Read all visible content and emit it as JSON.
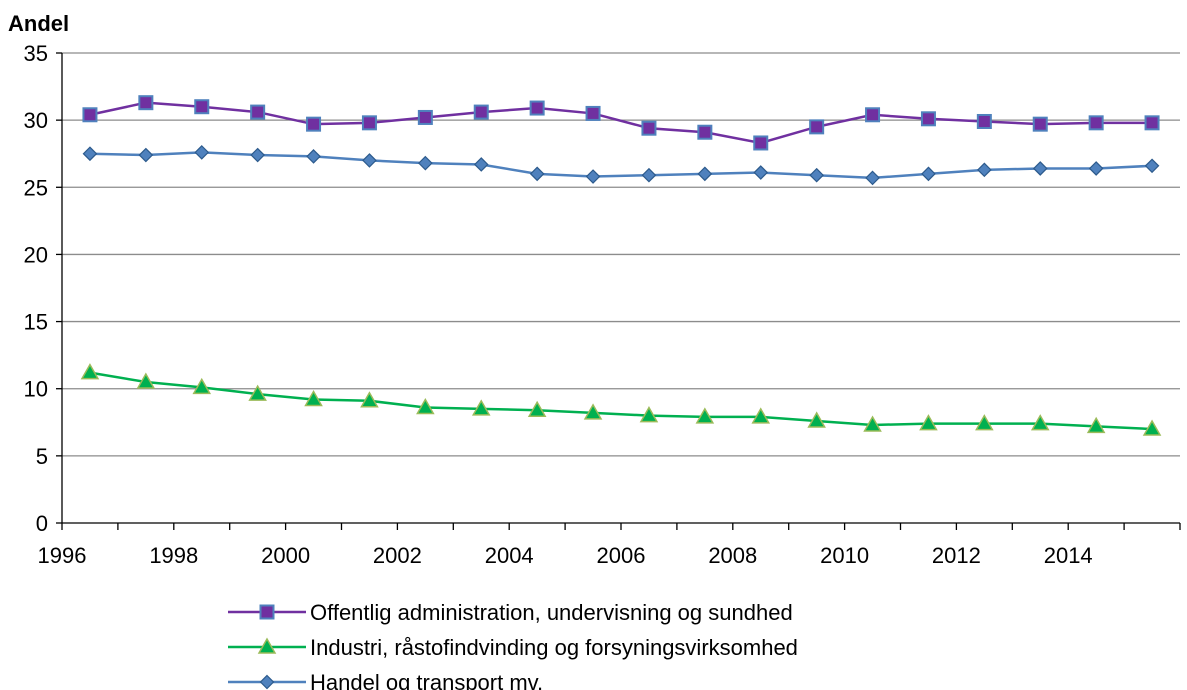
{
  "chart_data": {
    "type": "line",
    "ylabel": "Andel",
    "xlabel": "",
    "ylim": [
      0,
      35
    ],
    "yticks": [
      "0",
      "5",
      "10",
      "15",
      "20",
      "25",
      "30",
      "35"
    ],
    "x": [
      1996,
      1997,
      1998,
      1999,
      2000,
      2001,
      2002,
      2003,
      2004,
      2005,
      2006,
      2007,
      2008,
      2009,
      2010,
      2011,
      2012,
      2013,
      2014,
      2015
    ],
    "xtick_labels": [
      "1996",
      "1998",
      "2000",
      "2002",
      "2004",
      "2006",
      "2008",
      "2010",
      "2012",
      "2014"
    ],
    "grid": true,
    "legend_position": "bottom",
    "series": [
      {
        "name": "Offentlig administration, undervisning og sundhed",
        "marker": "square",
        "color": "#7030A0",
        "marker_fill": "#7030A0",
        "marker_edge": "#4F81BD",
        "values": [
          30.4,
          31.3,
          31.0,
          30.6,
          29.7,
          29.8,
          30.2,
          30.6,
          30.9,
          30.5,
          29.4,
          29.1,
          28.3,
          29.5,
          30.4,
          30.1,
          29.9,
          29.7,
          29.8,
          29.8
        ]
      },
      {
        "name": "Industri, råstofindvinding og forsyningsvirksomhed",
        "marker": "triangle",
        "color": "#00B050",
        "marker_fill": "#00B050",
        "marker_edge": "#9BBB59",
        "values": [
          11.2,
          10.5,
          10.1,
          9.6,
          9.2,
          9.1,
          8.6,
          8.5,
          8.4,
          8.2,
          8.0,
          7.9,
          7.9,
          7.6,
          7.3,
          7.4,
          7.4,
          7.4,
          7.2,
          7.0
        ]
      },
      {
        "name": "Handel og transport mv.",
        "marker": "diamond",
        "color": "#4F81BD",
        "marker_fill": "#4F81BD",
        "marker_edge": "#2C5A8C",
        "values": [
          27.5,
          27.4,
          27.6,
          27.4,
          27.3,
          27.0,
          26.8,
          26.7,
          26.0,
          25.8,
          25.9,
          26.0,
          26.1,
          25.9,
          25.7,
          26.0,
          26.3,
          26.4,
          26.4,
          26.6
        ]
      }
    ]
  }
}
